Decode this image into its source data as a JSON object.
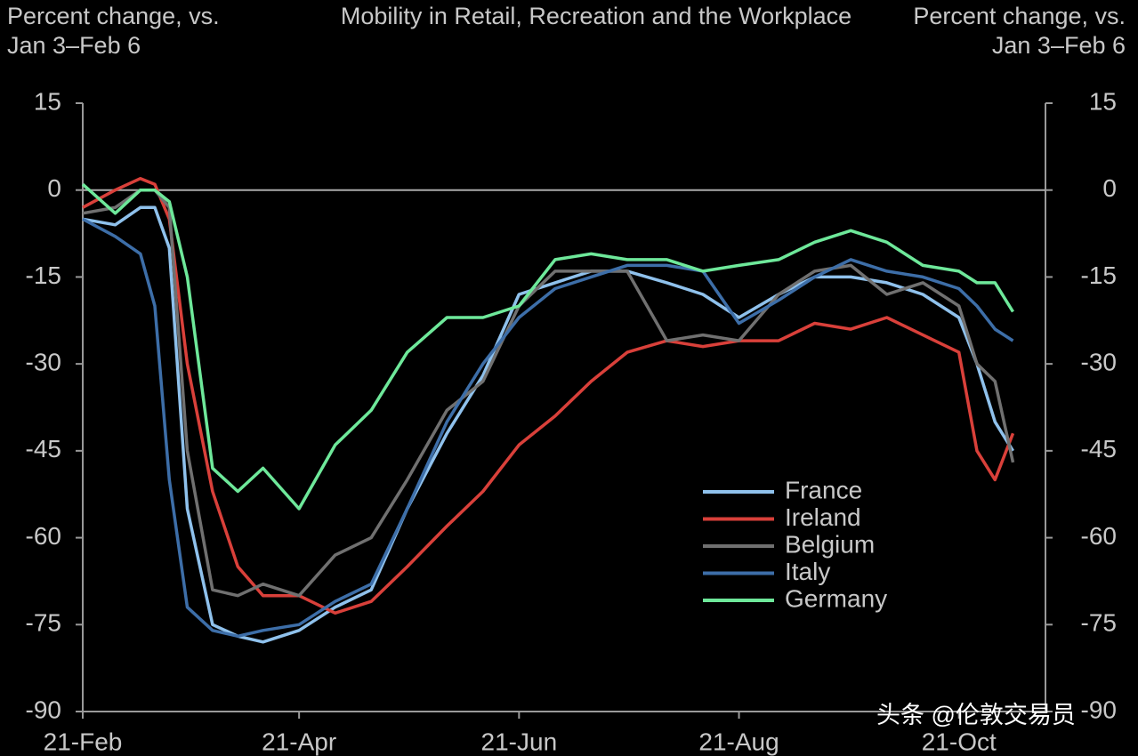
{
  "chart_data": {
    "type": "line",
    "title": "Mobility in Retail, Recreation and the Workplace",
    "y_label": "Percent change, vs. Jan 3–Feb 6",
    "y2_label": "Percent change, vs. Jan 3–Feb 6",
    "x": [
      "21-Feb",
      "1-Mar",
      "8-Mar",
      "12-Mar",
      "16-Mar",
      "21-Mar",
      "28-Mar",
      "4-Apr",
      "11-Apr",
      "21-Apr",
      "1-May",
      "11-May",
      "21-May",
      "1-Jun",
      "11-Jun",
      "21-Jun",
      "1-Jul",
      "11-Jul",
      "21-Jul",
      "1-Aug",
      "11-Aug",
      "21-Aug",
      "1-Sep",
      "11-Sep",
      "21-Sep",
      "1-Oct",
      "11-Oct",
      "21-Oct",
      "26-Oct",
      "31-Oct",
      "5-Nov"
    ],
    "xlim": [
      "21-Feb",
      "14-Nov"
    ],
    "xticks": [
      "21-Feb",
      "21-Apr",
      "21-Jun",
      "21-Aug",
      "21-Oct"
    ],
    "ylim": [
      -90,
      15
    ],
    "yticks": [
      15,
      0,
      -15,
      -30,
      -45,
      -60,
      -75,
      -90
    ],
    "y2lim": [
      -90,
      15
    ],
    "y2ticks": [
      15,
      0,
      -15,
      -30,
      -45,
      -60,
      -75,
      -90
    ],
    "zero_line": true,
    "legend": "lower right",
    "series": [
      {
        "name": "France",
        "color": "#8fc1ec",
        "values": [
          -5,
          -6,
          -3,
          -3,
          -10,
          -55,
          -75,
          -77,
          -78,
          -76,
          -72,
          -69,
          -55,
          -42,
          -32,
          -18,
          -16,
          -14,
          -14,
          -16,
          -18,
          -22,
          -18,
          -15,
          -15,
          -16,
          -18,
          -22,
          -30,
          -40,
          -45
        ]
      },
      {
        "name": "Ireland",
        "color": "#d9403a",
        "values": [
          -3,
          0,
          2,
          1,
          -5,
          -30,
          -52,
          -65,
          -70,
          -70,
          -73,
          -71,
          -65,
          -58,
          -52,
          -44,
          -39,
          -33,
          -28,
          -26,
          -27,
          -26,
          -26,
          -23,
          -24,
          -22,
          -25,
          -28,
          -45,
          -50,
          -42
        ]
      },
      {
        "name": "Belgium",
        "color": "#707070",
        "values": [
          -4,
          -3,
          0,
          0,
          -3,
          -45,
          -69,
          -70,
          -68,
          -70,
          -63,
          -60,
          -50,
          -38,
          -33,
          -20,
          -14,
          -14,
          -14,
          -26,
          -25,
          -26,
          -18,
          -14,
          -13,
          -18,
          -16,
          -20,
          -30,
          -33,
          -47
        ]
      },
      {
        "name": "Italy",
        "color": "#3d6ea8",
        "values": [
          -5,
          -8,
          -11,
          -20,
          -50,
          -72,
          -76,
          -77,
          -76,
          -75,
          -71,
          -68,
          -55,
          -40,
          -30,
          -22,
          -17,
          -15,
          -13,
          -13,
          -14,
          -23,
          -19,
          -15,
          -12,
          -14,
          -15,
          -17,
          -20,
          -24,
          -26
        ]
      },
      {
        "name": "Germany",
        "color": "#6ee89a",
        "values": [
          1,
          -4,
          0,
          0,
          -2,
          -15,
          -48,
          -52,
          -48,
          -55,
          -44,
          -38,
          -28,
          -22,
          -22,
          -20,
          -12,
          -11,
          -12,
          -12,
          -14,
          -13,
          -12,
          -9,
          -7,
          -9,
          -13,
          -14,
          -16,
          -16,
          -21
        ]
      }
    ],
    "watermark": "头条 @伦敦交易员"
  }
}
